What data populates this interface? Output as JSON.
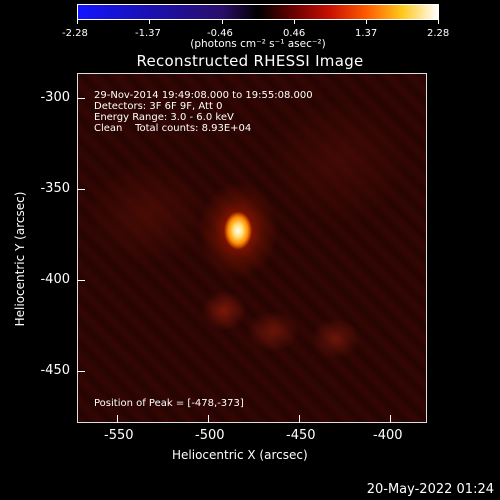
{
  "colorbar": {
    "ticks": [
      "-2.28",
      "-1.37",
      "-0.46",
      "0.46",
      "1.37",
      "2.28"
    ],
    "unit_label": "(photons cm⁻² s⁻¹ asec⁻²)"
  },
  "title": "Reconstructed RHESSI Image",
  "annotations": {
    "time_range": "29-Nov-2014 19:49:08.000 to 19:55:08.000",
    "detectors": "Detectors: 3F 6F 9F, Att 0",
    "energy": "Energy Range: 3.0 - 6.0 keV",
    "clean": "Clean    Total counts: 8.93E+04",
    "peak": "Position of Peak = [-478,-373]"
  },
  "axes": {
    "x_label": "Heliocentric X (arcsec)",
    "y_label": "Heliocentric Y (arcsec)",
    "x_ticks": [
      "-550",
      "-500",
      "-450",
      "-400"
    ],
    "y_ticks": [
      "-300",
      "-350",
      "-400",
      "-450"
    ]
  },
  "footer_date": "20-May-2022 01:24"
}
